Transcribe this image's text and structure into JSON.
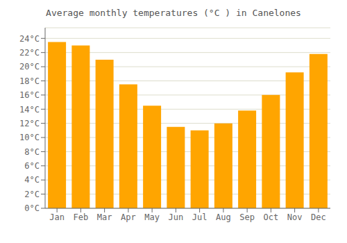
{
  "chart_data": {
    "type": "bar",
    "title": "Average monthly temperatures (°C ) in Canelones",
    "categories": [
      "Jan",
      "Feb",
      "Mar",
      "Apr",
      "May",
      "Jun",
      "Jul",
      "Aug",
      "Sep",
      "Oct",
      "Nov",
      "Dec"
    ],
    "values": [
      23.5,
      23.0,
      21.0,
      17.5,
      14.5,
      11.5,
      11.0,
      12.0,
      13.8,
      16.0,
      19.2,
      21.8
    ],
    "color": "#FFA500",
    "ylim": [
      0,
      25.5
    ],
    "yticks": [
      {
        "value": 0,
        "label": "0°C"
      },
      {
        "value": 2,
        "label": "2°C"
      },
      {
        "value": 4,
        "label": "4°C"
      },
      {
        "value": 6,
        "label": "6°C"
      },
      {
        "value": 8,
        "label": "8°C"
      },
      {
        "value": 10,
        "label": "10°C"
      },
      {
        "value": 12,
        "label": "12°C"
      },
      {
        "value": 14,
        "label": "14°C"
      },
      {
        "value": 16,
        "label": "16°C"
      },
      {
        "value": 18,
        "label": "18°C"
      },
      {
        "value": 20,
        "label": "20°C"
      },
      {
        "value": 22,
        "label": "22°C"
      },
      {
        "value": 24,
        "label": "24°C"
      }
    ],
    "grid": true
  }
}
